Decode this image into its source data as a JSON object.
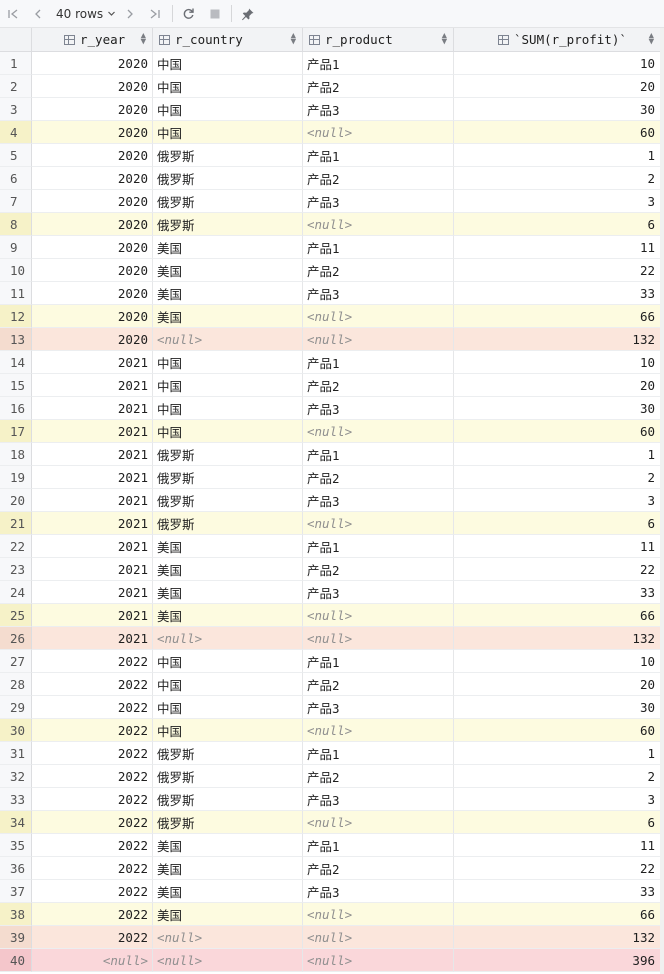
{
  "toolbar": {
    "rows_label": "40 rows",
    "icons": [
      "first-page-icon",
      "prev-page-icon",
      "next-page-icon",
      "last-page-icon",
      "refresh-icon",
      "stop-icon",
      "pin-icon"
    ]
  },
  "columns": [
    "r_year",
    "r_country",
    "r_product",
    "`SUM(r_profit)`"
  ],
  "null_text": "<null>",
  "rows": [
    {
      "n": "1",
      "year": "2020",
      "country": "中国",
      "product": "产品1",
      "sum": "10",
      "kind": "normal"
    },
    {
      "n": "2",
      "year": "2020",
      "country": "中国",
      "product": "产品2",
      "sum": "20",
      "kind": "normal"
    },
    {
      "n": "3",
      "year": "2020",
      "country": "中国",
      "product": "产品3",
      "sum": "30",
      "kind": "normal"
    },
    {
      "n": "4",
      "year": "2020",
      "country": "中国",
      "product": null,
      "sum": "60",
      "kind": "sub"
    },
    {
      "n": "5",
      "year": "2020",
      "country": "俄罗斯",
      "product": "产品1",
      "sum": "1",
      "kind": "normal"
    },
    {
      "n": "6",
      "year": "2020",
      "country": "俄罗斯",
      "product": "产品2",
      "sum": "2",
      "kind": "normal"
    },
    {
      "n": "7",
      "year": "2020",
      "country": "俄罗斯",
      "product": "产品3",
      "sum": "3",
      "kind": "normal"
    },
    {
      "n": "8",
      "year": "2020",
      "country": "俄罗斯",
      "product": null,
      "sum": "6",
      "kind": "sub"
    },
    {
      "n": "9",
      "year": "2020",
      "country": "美国",
      "product": "产品1",
      "sum": "11",
      "kind": "normal"
    },
    {
      "n": "10",
      "year": "2020",
      "country": "美国",
      "product": "产品2",
      "sum": "22",
      "kind": "normal"
    },
    {
      "n": "11",
      "year": "2020",
      "country": "美国",
      "product": "产品3",
      "sum": "33",
      "kind": "normal"
    },
    {
      "n": "12",
      "year": "2020",
      "country": "美国",
      "product": null,
      "sum": "66",
      "kind": "sub"
    },
    {
      "n": "13",
      "year": "2020",
      "country": null,
      "product": null,
      "sum": "132",
      "kind": "tot"
    },
    {
      "n": "14",
      "year": "2021",
      "country": "中国",
      "product": "产品1",
      "sum": "10",
      "kind": "normal"
    },
    {
      "n": "15",
      "year": "2021",
      "country": "中国",
      "product": "产品2",
      "sum": "20",
      "kind": "normal"
    },
    {
      "n": "16",
      "year": "2021",
      "country": "中国",
      "product": "产品3",
      "sum": "30",
      "kind": "normal"
    },
    {
      "n": "17",
      "year": "2021",
      "country": "中国",
      "product": null,
      "sum": "60",
      "kind": "sub"
    },
    {
      "n": "18",
      "year": "2021",
      "country": "俄罗斯",
      "product": "产品1",
      "sum": "1",
      "kind": "normal"
    },
    {
      "n": "19",
      "year": "2021",
      "country": "俄罗斯",
      "product": "产品2",
      "sum": "2",
      "kind": "normal"
    },
    {
      "n": "20",
      "year": "2021",
      "country": "俄罗斯",
      "product": "产品3",
      "sum": "3",
      "kind": "normal"
    },
    {
      "n": "21",
      "year": "2021",
      "country": "俄罗斯",
      "product": null,
      "sum": "6",
      "kind": "sub"
    },
    {
      "n": "22",
      "year": "2021",
      "country": "美国",
      "product": "产品1",
      "sum": "11",
      "kind": "normal"
    },
    {
      "n": "23",
      "year": "2021",
      "country": "美国",
      "product": "产品2",
      "sum": "22",
      "kind": "normal"
    },
    {
      "n": "24",
      "year": "2021",
      "country": "美国",
      "product": "产品3",
      "sum": "33",
      "kind": "normal"
    },
    {
      "n": "25",
      "year": "2021",
      "country": "美国",
      "product": null,
      "sum": "66",
      "kind": "sub"
    },
    {
      "n": "26",
      "year": "2021",
      "country": null,
      "product": null,
      "sum": "132",
      "kind": "tot"
    },
    {
      "n": "27",
      "year": "2022",
      "country": "中国",
      "product": "产品1",
      "sum": "10",
      "kind": "normal"
    },
    {
      "n": "28",
      "year": "2022",
      "country": "中国",
      "product": "产品2",
      "sum": "20",
      "kind": "normal"
    },
    {
      "n": "29",
      "year": "2022",
      "country": "中国",
      "product": "产品3",
      "sum": "30",
      "kind": "normal"
    },
    {
      "n": "30",
      "year": "2022",
      "country": "中国",
      "product": null,
      "sum": "60",
      "kind": "sub"
    },
    {
      "n": "31",
      "year": "2022",
      "country": "俄罗斯",
      "product": "产品1",
      "sum": "1",
      "kind": "normal"
    },
    {
      "n": "32",
      "year": "2022",
      "country": "俄罗斯",
      "product": "产品2",
      "sum": "2",
      "kind": "normal"
    },
    {
      "n": "33",
      "year": "2022",
      "country": "俄罗斯",
      "product": "产品3",
      "sum": "3",
      "kind": "normal"
    },
    {
      "n": "34",
      "year": "2022",
      "country": "俄罗斯",
      "product": null,
      "sum": "6",
      "kind": "sub"
    },
    {
      "n": "35",
      "year": "2022",
      "country": "美国",
      "product": "产品1",
      "sum": "11",
      "kind": "normal"
    },
    {
      "n": "36",
      "year": "2022",
      "country": "美国",
      "product": "产品2",
      "sum": "22",
      "kind": "normal"
    },
    {
      "n": "37",
      "year": "2022",
      "country": "美国",
      "product": "产品3",
      "sum": "33",
      "kind": "normal"
    },
    {
      "n": "38",
      "year": "2022",
      "country": "美国",
      "product": null,
      "sum": "66",
      "kind": "sub"
    },
    {
      "n": "39",
      "year": "2022",
      "country": null,
      "product": null,
      "sum": "132",
      "kind": "tot"
    },
    {
      "n": "40",
      "year": null,
      "country": null,
      "product": null,
      "sum": "396",
      "kind": "grand"
    }
  ]
}
